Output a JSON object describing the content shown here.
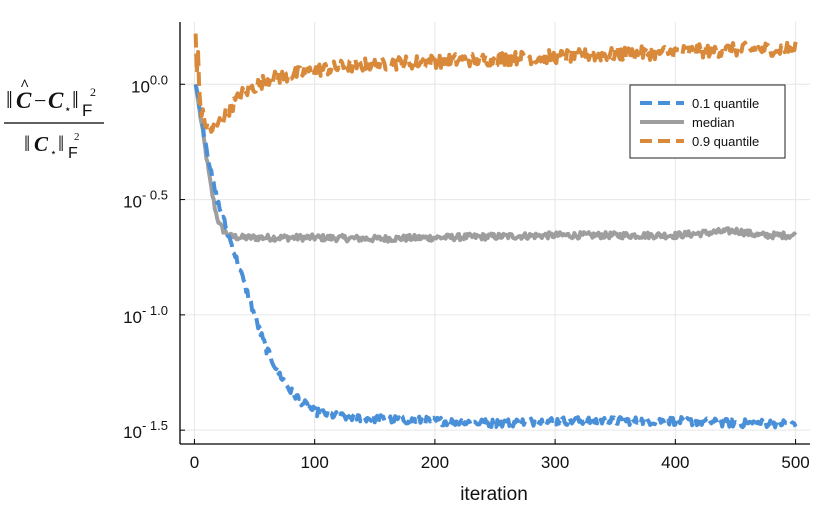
{
  "chart_data": {
    "type": "line",
    "xlabel": "iteration",
    "ylabel_math": "‖Ĉ − C⋆‖F² / ‖C⋆‖F²",
    "x_scale": "linear",
    "y_scale": "log10",
    "xlim": [
      -12,
      512
    ],
    "ylim": [
      -1.56,
      0.27
    ],
    "x_ticks": [
      0,
      100,
      200,
      300,
      400,
      500
    ],
    "y_ticks": [
      {
        "value": 0.0,
        "base": "10",
        "exp": "0.0"
      },
      {
        "value": -0.5,
        "base": "10",
        "exp": "- 0.5"
      },
      {
        "value": -1.0,
        "base": "10",
        "exp": "- 1.0"
      },
      {
        "value": -1.5,
        "base": "10",
        "exp": "- 1.5"
      }
    ],
    "grid": true,
    "legend_position": "top-right",
    "series": [
      {
        "name": "0.1 quantile",
        "color": "#4a90d9",
        "style": "dashed",
        "log10_points": [
          [
            1,
            0.0
          ],
          [
            3,
            -0.05
          ],
          [
            5,
            -0.12
          ],
          [
            7,
            -0.18
          ],
          [
            9,
            -0.24
          ],
          [
            11,
            -0.3
          ],
          [
            13,
            -0.36
          ],
          [
            15,
            -0.42
          ],
          [
            18,
            -0.48
          ],
          [
            21,
            -0.54
          ],
          [
            25,
            -0.6
          ],
          [
            30,
            -0.68
          ],
          [
            35,
            -0.76
          ],
          [
            40,
            -0.84
          ],
          [
            45,
            -0.92
          ],
          [
            50,
            -1.0
          ],
          [
            55,
            -1.08
          ],
          [
            60,
            -1.15
          ],
          [
            70,
            -1.25
          ],
          [
            80,
            -1.33
          ],
          [
            90,
            -1.38
          ],
          [
            100,
            -1.42
          ],
          [
            120,
            -1.44
          ],
          [
            150,
            -1.45
          ],
          [
            200,
            -1.46
          ],
          [
            250,
            -1.47
          ],
          [
            300,
            -1.46
          ],
          [
            350,
            -1.46
          ],
          [
            400,
            -1.46
          ],
          [
            450,
            -1.47
          ],
          [
            500,
            -1.47
          ]
        ],
        "noise": 0.018
      },
      {
        "name": "median",
        "color": "#9e9e9e",
        "style": "solid",
        "log10_points": [
          [
            1,
            0.0
          ],
          [
            3,
            -0.07
          ],
          [
            5,
            -0.14
          ],
          [
            7,
            -0.21
          ],
          [
            9,
            -0.28
          ],
          [
            11,
            -0.35
          ],
          [
            13,
            -0.42
          ],
          [
            15,
            -0.48
          ],
          [
            18,
            -0.56
          ],
          [
            21,
            -0.61
          ],
          [
            25,
            -0.64
          ],
          [
            30,
            -0.66
          ],
          [
            40,
            -0.665
          ],
          [
            60,
            -0.665
          ],
          [
            100,
            -0.665
          ],
          [
            150,
            -0.67
          ],
          [
            200,
            -0.665
          ],
          [
            250,
            -0.66
          ],
          [
            300,
            -0.655
          ],
          [
            350,
            -0.655
          ],
          [
            400,
            -0.655
          ],
          [
            450,
            -0.635
          ],
          [
            470,
            -0.655
          ],
          [
            500,
            -0.655
          ]
        ],
        "noise": 0.014
      },
      {
        "name": "0.9 quantile",
        "color": "#d9893a",
        "style": "dashed",
        "log10_points": [
          [
            1,
            0.22
          ],
          [
            2,
            0.05
          ],
          [
            3,
            0.14
          ],
          [
            4,
            -0.05
          ],
          [
            6,
            -0.12
          ],
          [
            8,
            -0.15
          ],
          [
            10,
            -0.18
          ],
          [
            15,
            -0.2
          ],
          [
            20,
            -0.17
          ],
          [
            30,
            -0.1
          ],
          [
            40,
            -0.04
          ],
          [
            60,
            0.02
          ],
          [
            80,
            0.04
          ],
          [
            100,
            0.06
          ],
          [
            130,
            0.08
          ],
          [
            160,
            0.09
          ],
          [
            200,
            0.1
          ],
          [
            250,
            0.11
          ],
          [
            300,
            0.12
          ],
          [
            350,
            0.13
          ],
          [
            400,
            0.14
          ],
          [
            450,
            0.15
          ],
          [
            500,
            0.155
          ]
        ],
        "noise": 0.03
      }
    ]
  }
}
